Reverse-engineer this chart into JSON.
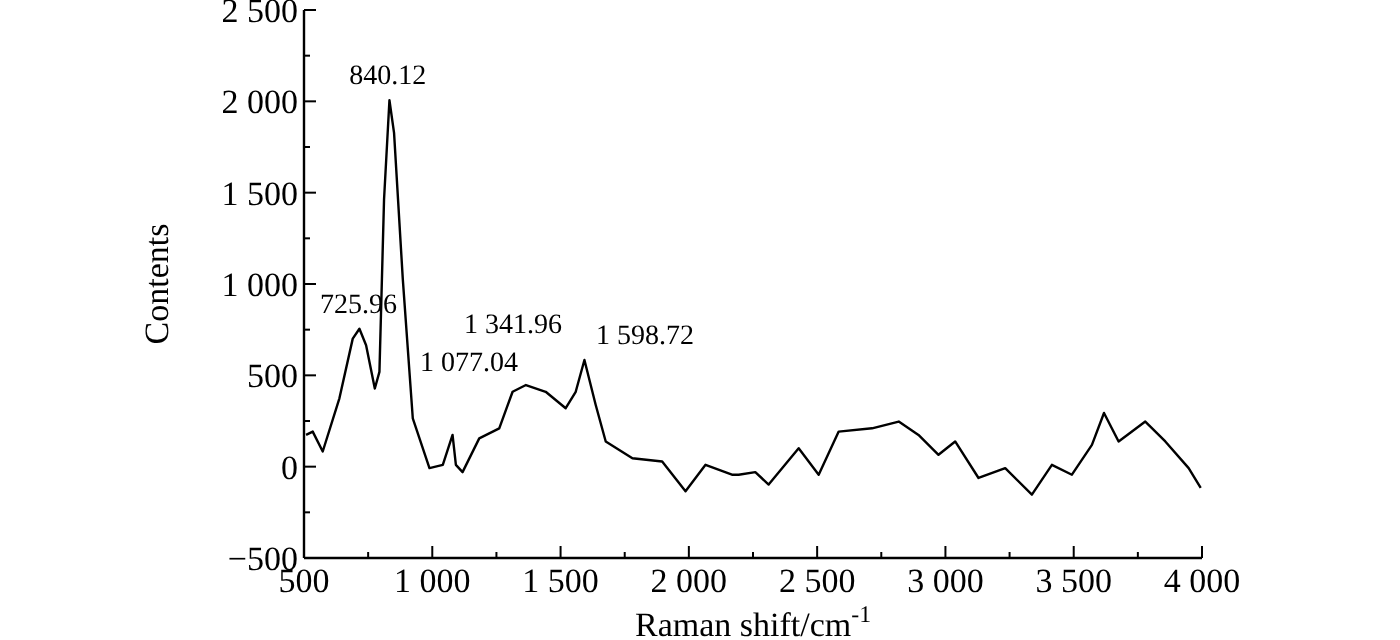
{
  "chart_data": {
    "type": "line",
    "xlabel": "Raman shift/cm$^{-1}$",
    "ylabel": "Contents",
    "xlim": [
      500,
      4000
    ],
    "ylim": [
      -500,
      2500
    ],
    "xticks": [
      500,
      {
        "value": 750,
        "label": null
      },
      {
        "value": 1000,
        "label": "1 000"
      },
      {
        "value": 1250,
        "label": null
      },
      {
        "value": 1500,
        "label": "1 500"
      },
      {
        "value": 1750,
        "label": null
      },
      {
        "value": 2000,
        "label": "2 000"
      },
      {
        "value": 2250,
        "label": null
      },
      {
        "value": 2500,
        "label": "2 500"
      },
      {
        "value": 2750,
        "label": null
      },
      {
        "value": 3000,
        "label": "3 000"
      },
      {
        "value": 3250,
        "label": null
      },
      {
        "value": 3500,
        "label": "3 500"
      },
      {
        "value": 3750,
        "label": null
      },
      {
        "value": 4000,
        "label": "4 000"
      }
    ],
    "yticks": [
      -500,
      {
        "value": -250,
        "label": null
      },
      0,
      {
        "value": 250,
        "label": null
      },
      500,
      {
        "value": 750,
        "label": null
      },
      {
        "value": 1000,
        "label": "1 000"
      },
      {
        "value": 1250,
        "label": null
      },
      {
        "value": 1500,
        "label": "1 500"
      },
      {
        "value": 1750,
        "label": null
      },
      {
        "value": 2000,
        "label": "2 000"
      },
      {
        "value": 2250,
        "label": null
      },
      {
        "value": 2500,
        "label": "2 500"
      }
    ],
    "grid": false,
    "marker": "none",
    "line_style": "solid",
    "series": [
      {
        "color": "#000000",
        "x": [
          508,
          534,
          573,
          638,
          690,
          716,
          742,
          776,
          794,
          812,
          833,
          851,
          885,
          924,
          989,
          1041,
          1079,
          1092,
          1118,
          1183,
          1261,
          1313,
          1365,
          1442,
          1520,
          1559,
          1593,
          1637,
          1676,
          1780,
          1896,
          1987,
          2065,
          2168,
          2194,
          2259,
          2311,
          2428,
          2506,
          2584,
          2714,
          2818,
          2895,
          2973,
          3038,
          3129,
          3233,
          3337,
          3415,
          3493,
          3571,
          3618,
          3675,
          3779,
          3857,
          3948,
          3995
        ],
        "values": [
          174,
          192,
          83,
          374,
          701,
          755,
          665,
          428,
          519,
          1464,
          2006,
          1827,
          1028,
          265,
          -8,
          10,
          174,
          10,
          -30,
          155,
          210,
          410,
          447,
          410,
          320,
          410,
          584,
          338,
          138,
          46,
          28,
          -135,
          10,
          -44,
          -44,
          -30,
          -98,
          101,
          -44,
          192,
          210,
          247,
          174,
          65,
          138,
          -62,
          -8,
          -153,
          10,
          -44,
          119,
          294,
          138,
          247,
          138,
          -8,
          -116
        ]
      }
    ],
    "annotations": [
      {
        "text": "725.96",
        "x": 725.96,
        "y": 755
      },
      {
        "text": "840.12",
        "x": 840.12,
        "y": 2006
      },
      {
        "text": "1 077.04",
        "x": 1077.04,
        "y": 174
      },
      {
        "text": "1 341.96",
        "x": 1341.96,
        "y": 447
      },
      {
        "text": "1 598.72",
        "x": 1598.72,
        "y": 584
      }
    ]
  }
}
